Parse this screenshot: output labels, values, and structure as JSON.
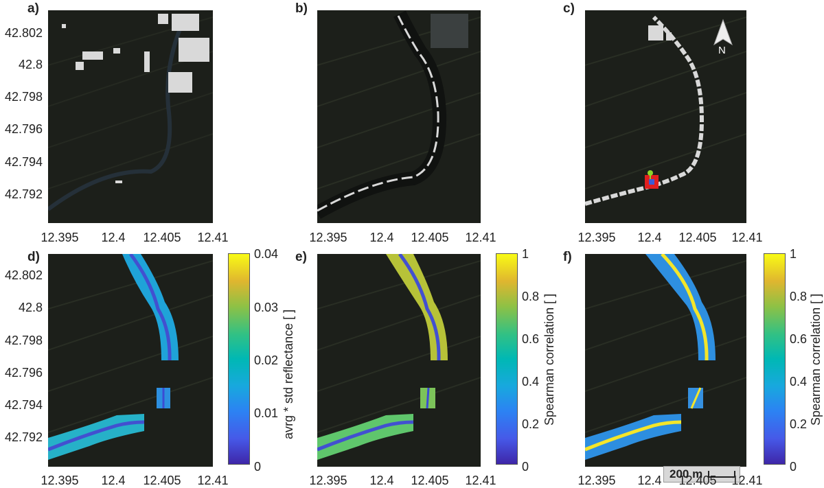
{
  "panels": [
    {
      "letter": "a)"
    },
    {
      "letter": "b)"
    },
    {
      "letter": "c)"
    },
    {
      "letter": "d)"
    },
    {
      "letter": "e)"
    },
    {
      "letter": "f)"
    }
  ],
  "y_ticks": [
    "42.802",
    "42.8",
    "42.798",
    "42.796",
    "42.794",
    "42.792"
  ],
  "x_ticks": [
    "12.395",
    "12.4",
    "12.405",
    "12.41"
  ],
  "colorbars": [
    {
      "label": "avrg * std reflectance [ ]",
      "ticks": [
        "0",
        "0.01",
        "0.02",
        "0.03",
        "0.04"
      ]
    },
    {
      "label": "Spearman correlation [ ]",
      "ticks": [
        "0",
        "0.2",
        "0.4",
        "0.6",
        "0.8",
        "1"
      ]
    },
    {
      "label": "Spearman correlation [ ]",
      "ticks": [
        "0",
        "0.2",
        "0.4",
        "0.6",
        "0.8",
        "1"
      ]
    }
  ],
  "north_arrow": {
    "label": "N",
    "icon": "north-arrow-icon"
  },
  "scale_bar": {
    "label": "200 m"
  },
  "colors": {
    "map_bg": "#1c1f1a",
    "river_mask": "#d9d9d9",
    "field": "#2a2e25"
  }
}
